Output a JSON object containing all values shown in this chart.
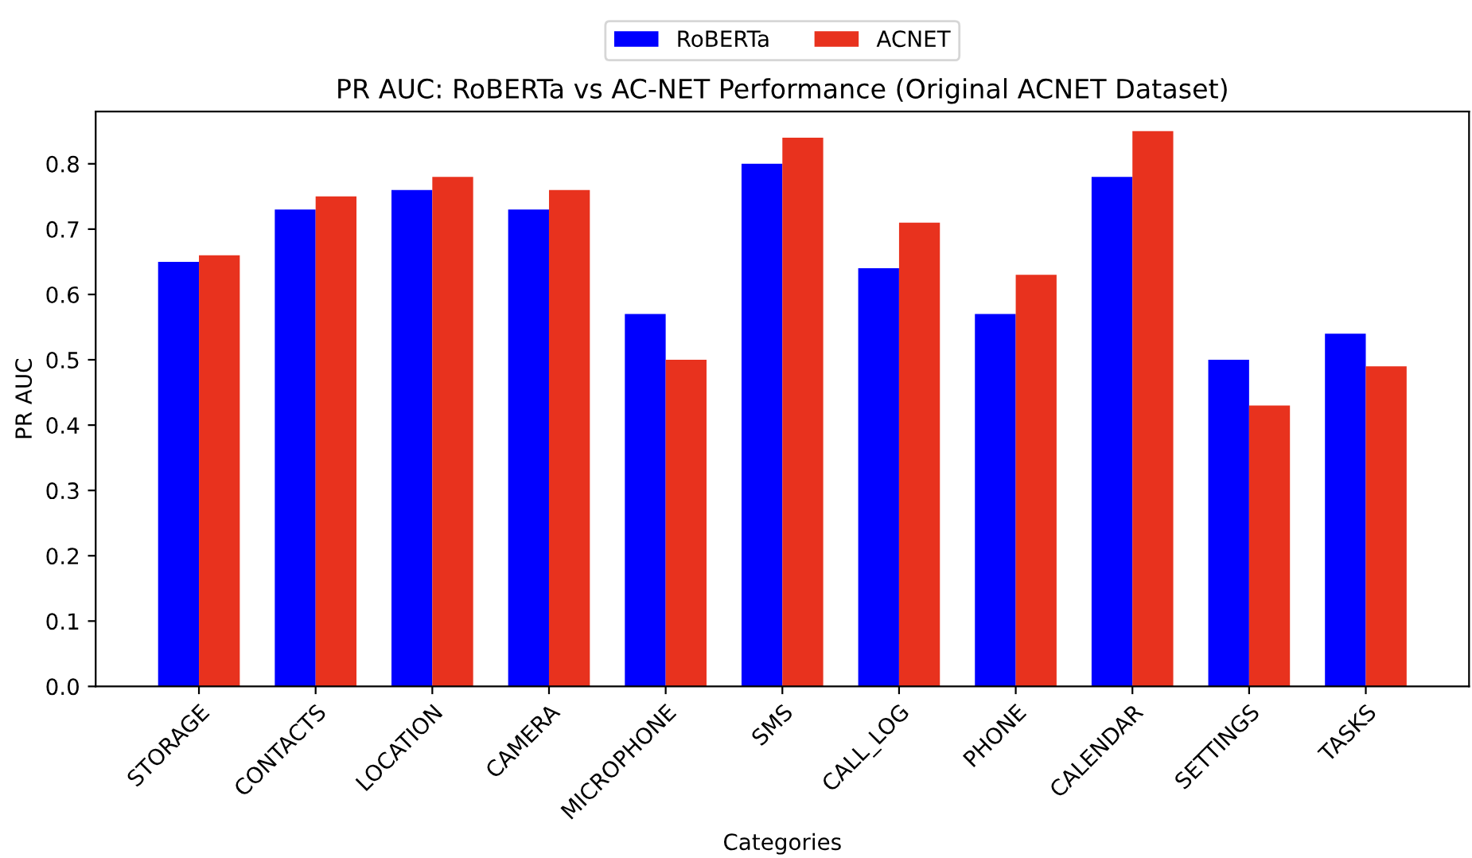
{
  "chart_data": {
    "type": "bar",
    "title": "PR AUC: RoBERTa vs AC-NET Performance (Original ACNET Dataset)",
    "xlabel": "Categories",
    "ylabel": "PR AUC",
    "categories": [
      "STORAGE",
      "CONTACTS",
      "LOCATION",
      "CAMERA",
      "MICROPHONE",
      "SMS",
      "CALL_LOG",
      "PHONE",
      "CALENDAR",
      "SETTINGS",
      "TASKS"
    ],
    "series": [
      {
        "name": "RoBERTa",
        "color": "#0000ff",
        "values": [
          0.65,
          0.73,
          0.76,
          0.73,
          0.57,
          0.8,
          0.64,
          0.57,
          0.78,
          0.5,
          0.54
        ]
      },
      {
        "name": "ACNET",
        "color": "#e8321e",
        "values": [
          0.66,
          0.75,
          0.78,
          0.76,
          0.5,
          0.84,
          0.71,
          0.63,
          0.85,
          0.43,
          0.49
        ]
      }
    ],
    "ylim": [
      0,
      0.88
    ],
    "yticks": [
      {
        "value": 0,
        "label": "0.0"
      },
      0.1,
      0.2,
      0.3,
      0.4,
      0.5,
      0.6,
      0.7,
      0.8
    ],
    "grid": false,
    "legend": "top"
  }
}
